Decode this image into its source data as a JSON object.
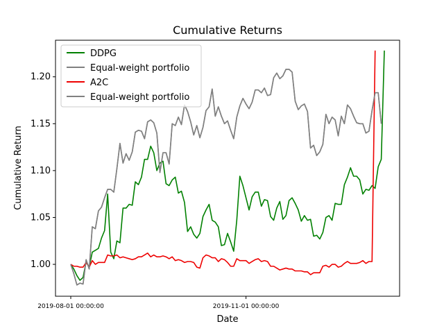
{
  "chart_data": {
    "type": "line",
    "title": "Cumulative Returns",
    "xlabel": "Date",
    "ylabel": "Cumulative Return",
    "ylim": [
      0.966,
      1.239
    ],
    "yticks": [
      1.0,
      1.05,
      1.1,
      1.15,
      1.2
    ],
    "ytick_labels": [
      "1.00",
      "1.05",
      "1.10",
      "1.15",
      "1.20"
    ],
    "xtick_labels": [
      "2019-08-01 00:00:00",
      "2019-11-01 00:00:00"
    ],
    "legend_position": "top-left",
    "grid": false,
    "series": [
      {
        "name": "DDPG",
        "color": "#008000",
        "values": [
          1.0,
          0.995,
          0.988,
          0.983,
          0.986,
          1.003,
          0.997,
          1.013,
          1.015,
          1.017,
          1.028,
          1.036,
          1.075,
          1.013,
          1.006,
          1.025,
          1.023,
          1.06,
          1.06,
          1.064,
          1.063,
          1.088,
          1.085,
          1.093,
          1.112,
          1.112,
          1.126,
          1.119,
          1.1,
          1.108,
          1.11,
          1.086,
          1.084,
          1.09,
          1.093,
          1.076,
          1.078,
          1.066,
          1.035,
          1.04,
          1.032,
          1.028,
          1.033,
          1.051,
          1.058,
          1.064,
          1.047,
          1.045,
          1.04,
          1.02,
          1.021,
          1.033,
          1.024,
          1.014,
          1.047,
          1.094,
          1.084,
          1.071,
          1.058,
          1.072,
          1.077,
          1.077,
          1.062,
          1.069,
          1.068,
          1.051,
          1.047,
          1.06,
          1.067,
          1.048,
          1.052,
          1.068,
          1.071,
          1.065,
          1.058,
          1.046,
          1.052,
          1.047,
          1.048,
          1.03,
          1.031,
          1.027,
          1.034,
          1.05,
          1.052,
          1.047,
          1.065,
          1.064,
          1.064,
          1.085,
          1.093,
          1.103,
          1.094,
          1.094,
          1.09,
          1.075,
          1.08,
          1.079,
          1.084,
          1.081,
          1.104,
          1.112,
          1.228
        ]
      },
      {
        "name": "Equal-weight portfolio",
        "color": "#808080",
        "values": [
          1.0,
          0.99,
          0.978,
          0.98,
          0.979,
          1.005,
          0.995,
          1.04,
          1.038,
          1.057,
          1.061,
          1.071,
          1.08,
          1.08,
          1.077,
          1.102,
          1.129,
          1.108,
          1.118,
          1.111,
          1.12,
          1.141,
          1.143,
          1.142,
          1.134,
          1.152,
          1.154,
          1.151,
          1.14,
          1.098,
          1.119,
          1.119,
          1.107,
          1.15,
          1.148,
          1.157,
          1.149,
          1.17,
          1.163,
          1.152,
          1.138,
          1.148,
          1.135,
          1.146,
          1.164,
          1.168,
          1.187,
          1.158,
          1.168,
          1.158,
          1.15,
          1.153,
          1.143,
          1.134,
          1.157,
          1.169,
          1.177,
          1.171,
          1.166,
          1.173,
          1.186,
          1.186,
          1.183,
          1.188,
          1.18,
          1.181,
          1.199,
          1.204,
          1.198,
          1.201,
          1.208,
          1.208,
          1.205,
          1.174,
          1.165,
          1.169,
          1.171,
          1.163,
          1.124,
          1.127,
          1.116,
          1.12,
          1.128,
          1.16,
          1.15,
          1.157,
          1.154,
          1.137,
          1.158,
          1.15,
          1.17,
          1.166,
          1.158,
          1.151,
          1.15,
          1.15,
          1.14,
          1.142,
          1.164,
          1.183,
          1.183,
          1.15
        ]
      },
      {
        "name": "A2C",
        "color": "#ee0000",
        "values": [
          1.0,
          0.998,
          0.998,
          0.997,
          0.997,
          1.002,
          0.997,
          1.004,
          1.0,
          1.002,
          1.002,
          1.002,
          1.01,
          1.009,
          1.009,
          1.01,
          1.007,
          1.008,
          1.007,
          1.006,
          1.005,
          1.006,
          1.008,
          1.008,
          1.01,
          1.012,
          1.008,
          1.01,
          1.008,
          1.008,
          1.009,
          1.008,
          1.006,
          1.008,
          1.004,
          1.005,
          1.004,
          1.002,
          1.003,
          1.003,
          1.002,
          0.997,
          0.996,
          1.007,
          1.01,
          1.009,
          1.007,
          1.007,
          1.003,
          1.006,
          1.005,
          1.002,
          0.998,
          0.998,
          1.006,
          1.004,
          1.004,
          1.004,
          1.001,
          1.003,
          1.005,
          1.006,
          1.003,
          1.004,
          1.003,
          0.998,
          0.998,
          0.996,
          0.994,
          0.995,
          0.996,
          0.995,
          0.995,
          0.993,
          0.993,
          0.993,
          0.992,
          0.992,
          0.989,
          0.991,
          0.991,
          0.991,
          0.998,
          0.999,
          0.997,
          1.0,
          1.0,
          0.997,
          0.998,
          1.001,
          1.003,
          1.001,
          1.001,
          1.001,
          1.002,
          1.004,
          1.001,
          1.003,
          1.003,
          1.228
        ]
      },
      {
        "name": "Equal-weight portfolio",
        "color": "#808080",
        "values": [
          1.0,
          0.99,
          0.978,
          0.98,
          0.979,
          1.005,
          0.995,
          1.04,
          1.038,
          1.057,
          1.061,
          1.071,
          1.08,
          1.08,
          1.077,
          1.102,
          1.129,
          1.108,
          1.118,
          1.111,
          1.12,
          1.141,
          1.143,
          1.142,
          1.134,
          1.152,
          1.154,
          1.151,
          1.14,
          1.098,
          1.119,
          1.119,
          1.107,
          1.15,
          1.148,
          1.157,
          1.149,
          1.17,
          1.163,
          1.152,
          1.138,
          1.148,
          1.135,
          1.146,
          1.164,
          1.168,
          1.187,
          1.158,
          1.168,
          1.158,
          1.15,
          1.153,
          1.143,
          1.134,
          1.157,
          1.169,
          1.177,
          1.171,
          1.166,
          1.173,
          1.186,
          1.186,
          1.183,
          1.188,
          1.18,
          1.181,
          1.199,
          1.204,
          1.198,
          1.201,
          1.208,
          1.208,
          1.205,
          1.174,
          1.165,
          1.169,
          1.171,
          1.163,
          1.124,
          1.127,
          1.116,
          1.12,
          1.128,
          1.16,
          1.15,
          1.157,
          1.154,
          1.137,
          1.158,
          1.15,
          1.17,
          1.166,
          1.158,
          1.151,
          1.15,
          1.15,
          1.14,
          1.142,
          1.164,
          1.183,
          1.183,
          1.15
        ]
      }
    ]
  }
}
